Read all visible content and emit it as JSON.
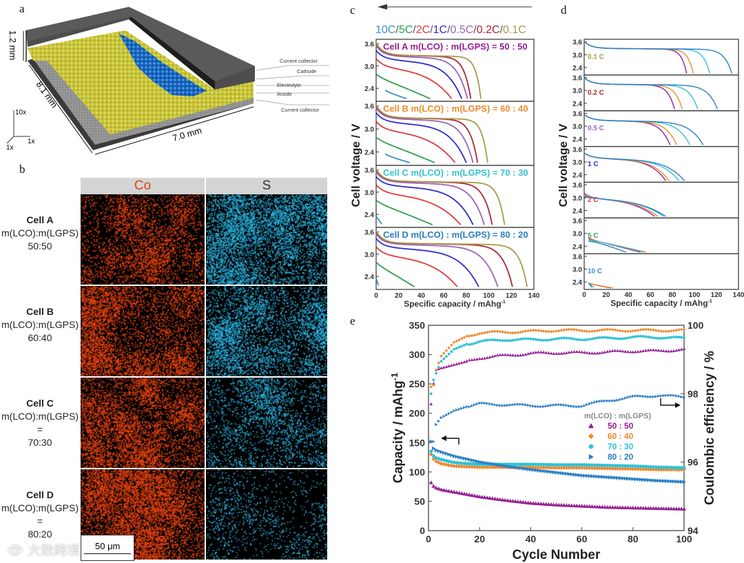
{
  "colors": {
    "rates": {
      "10C": "#3a8fd0",
      "5C": "#2e9e4f",
      "2C": "#e0393b",
      "1C": "#2b2bd6",
      "0.5C": "#9a62b8",
      "0.2C": "#a8282f",
      "0.1C": "#a89a48"
    },
    "cells": {
      "A": "#951e94",
      "B": "#f08a2c",
      "C": "#33c2d6",
      "D": "#2a7fc4"
    }
  },
  "panel_labels": [
    "a",
    "b",
    "c",
    "d",
    "e"
  ],
  "panel_a": {
    "dims": {
      "height": "1.2 mm",
      "depth": "8.1 mm",
      "width": "7.0 mm"
    },
    "layers": [
      "Current collector",
      "Cathode",
      "Electrolyte",
      "Anode",
      "Current collector"
    ],
    "axes": {
      "z": "10x",
      "x": "1x",
      "y": "1x"
    }
  },
  "panel_b": {
    "columns": [
      {
        "label": "Co",
        "color": "#d94410"
      },
      {
        "label": "S",
        "color": "#333333"
      }
    ],
    "rows": [
      {
        "cell": "Cell A",
        "ratio_label": "m(LCO):m(LGPS)",
        "eq": "",
        "ratio": "50:50"
      },
      {
        "cell": "Cell B",
        "ratio_label": "m(LCO):m(LGPS)",
        "eq": "",
        "ratio": "60:40"
      },
      {
        "cell": "Cell C",
        "ratio_label": "m(LCO):m(LGPS)",
        "eq": "=",
        "ratio": "70:30"
      },
      {
        "cell": "Cell D",
        "ratio_label": "m(LCO):m(LGPS)",
        "eq": "=",
        "ratio": "80:20"
      }
    ],
    "scale_bar": "50  μm",
    "watermark": "大数跨境"
  },
  "chart_data": [
    {
      "id": "c",
      "type": "line",
      "rates": [
        "10C",
        "5C",
        "2C",
        "1C",
        "0.5C",
        "0.2C",
        "0.1C"
      ],
      "legend_sep": "/",
      "ylabel": "Cell voltage / V",
      "xlabel": "Specific capacity / mAhg",
      "xlabel_sup": "-1",
      "xlim": [
        0,
        140
      ],
      "xticks": [
        0,
        20,
        40,
        60,
        80,
        100,
        120,
        140
      ],
      "ylim": [
        2.05,
        3.72
      ],
      "yticks": [
        "2.4",
        "3.0",
        "3.6"
      ],
      "subplots": [
        {
          "cell": "A",
          "title": "Cell A m(LCO) : m(LGPS) = 50 : 50",
          "end_capacity": {
            "10C": 19,
            "5C": 48,
            "2C": 67,
            "1C": 76,
            "0.5C": 81,
            "0.2C": 84,
            "0.1C": 93
          }
        },
        {
          "cell": "B",
          "title": "Cell B m(LCO) : m(LGPS) = 60 : 40",
          "end_capacity": {
            "10C": 22,
            "5C": 52,
            "2C": 70,
            "1C": 80,
            "0.5C": 86,
            "0.2C": 90,
            "0.1C": 99
          }
        },
        {
          "cell": "C",
          "title": "Cell C m(LCO) : m(LGPS) = 70 : 30",
          "end_capacity": {
            "10C": 5,
            "5C": 50,
            "2C": 75,
            "1C": 86,
            "0.5C": 96,
            "0.2C": 103,
            "0.1C": 114
          }
        },
        {
          "cell": "D",
          "title": "Cell D m(LCO) : m(LGPS) = 80 : 20",
          "end_capacity": {
            "10C": 2,
            "5C": 34,
            "2C": 72,
            "1C": 91,
            "0.5C": 108,
            "0.2C": 121,
            "0.1C": 134
          }
        }
      ],
      "start_voltage": {
        "10C": 2.35,
        "5C": 2.78,
        "2C": 3.2,
        "1C": 3.42,
        "0.5C": 3.55,
        "0.2C": 3.6,
        "0.1C": 3.62
      }
    },
    {
      "id": "d",
      "type": "line",
      "ylabel": "Cell voltage / V",
      "xlabel": "Specific capacity / mAhg",
      "xlabel_sup": "-1",
      "xlim": [
        0,
        140
      ],
      "xticks": [
        0,
        20,
        40,
        60,
        80,
        100,
        120,
        140
      ],
      "ylim": [
        2.05,
        3.72
      ],
      "yticks": [
        "2.4",
        "3.0",
        "3.6"
      ],
      "subplots": [
        {
          "rate": "0.1C",
          "title": "0.1 C",
          "end_capacity": {
            "A": 93,
            "B": 99,
            "C": 114,
            "D": 134
          }
        },
        {
          "rate": "0.2C",
          "title": "0.2 C",
          "end_capacity": {
            "A": 82,
            "B": 89,
            "C": 103,
            "D": 121
          }
        },
        {
          "rate": "0.5C",
          "title": "0.5 C",
          "end_capacity": {
            "A": 78,
            "B": 84,
            "C": 96,
            "D": 108
          }
        },
        {
          "rate": "1C",
          "title": "1 C",
          "end_capacity": {
            "A": 74,
            "B": 77,
            "C": 86,
            "D": 91
          }
        },
        {
          "rate": "2C",
          "title": "2 C",
          "end_capacity": {
            "A": 64,
            "B": 67,
            "C": 72,
            "D": 74
          }
        },
        {
          "rate": "5C",
          "title": "5 C",
          "end_capacity": {
            "A": 47,
            "B": 52,
            "C": 50,
            "D": 34
          }
        },
        {
          "rate": "10C",
          "title": "10 C",
          "end_capacity": {
            "A": 20,
            "B": 22,
            "C": 5,
            "D": 3
          }
        }
      ]
    },
    {
      "id": "e",
      "type": "scatter",
      "xlabel": "Cycle Number",
      "ylabel": "Capacity / mAhg",
      "ylabel_sup": "-1",
      "y2label": "Coulombic efficiency / %",
      "xlim": [
        0,
        100
      ],
      "xticks": [
        0,
        20,
        40,
        60,
        80,
        100
      ],
      "ylim": [
        0,
        350
      ],
      "yticks": [
        0,
        50,
        100,
        150,
        200,
        250,
        300,
        350
      ],
      "y2lim": [
        94,
        100
      ],
      "y2ticks": [
        94,
        96,
        98,
        100
      ],
      "legend_title": "m(LCO) : m(LGPS)",
      "legend_position": "center-right",
      "x": [
        1,
        2,
        3,
        5,
        10,
        15,
        20,
        30,
        40,
        50,
        60,
        70,
        80,
        90,
        100
      ],
      "series": [
        {
          "name": "50 : 50",
          "cell": "A",
          "marker": "triangle",
          "capacity": [
            82,
            76,
            73,
            70,
            66,
            62,
            58,
            52,
            47,
            44,
            42,
            40,
            39,
            38,
            37
          ],
          "ce": [
            97.7,
            98.3,
            98.7,
            98.75,
            98.85,
            98.95,
            99.05,
            99.12,
            99.18,
            99.2,
            99.2,
            99.22,
            99.25,
            99.25,
            99.3
          ]
        },
        {
          "name": "60 : 40",
          "cell": "B",
          "marker": "diamond",
          "capacity": [
            130,
            122,
            118,
            114,
            110,
            109,
            108,
            108,
            108,
            107,
            107,
            106,
            105,
            104,
            104
          ],
          "ce": [
            98.2,
            98.25,
            98.7,
            99.1,
            99.5,
            99.68,
            99.78,
            99.8,
            99.82,
            99.85,
            99.85,
            99.85,
            99.85,
            99.85,
            99.85
          ]
        },
        {
          "name": "70 : 30",
          "cell": "C",
          "marker": "circle",
          "capacity": [
            135,
            127,
            124,
            121,
            116,
            114,
            113,
            113,
            113,
            112,
            112,
            111,
            110,
            108,
            107
          ],
          "ce": [
            98.0,
            98.4,
            98.6,
            98.95,
            99.3,
            99.45,
            99.52,
            99.58,
            99.58,
            99.6,
            99.6,
            99.62,
            99.65,
            99.65,
            99.62
          ]
        },
        {
          "name": "80 : 20",
          "cell": "D",
          "marker": "right-triangle",
          "capacity": [
            152,
            140,
            137,
            134,
            127,
            122,
            117,
            110,
            104,
            99,
            94,
            91,
            88,
            85,
            83
          ],
          "ce": [
            96.6,
            96.6,
            97.1,
            97.3,
            97.5,
            97.62,
            97.7,
            97.68,
            97.65,
            97.65,
            97.65,
            97.8,
            97.9,
            97.95,
            97.9
          ]
        }
      ]
    }
  ]
}
